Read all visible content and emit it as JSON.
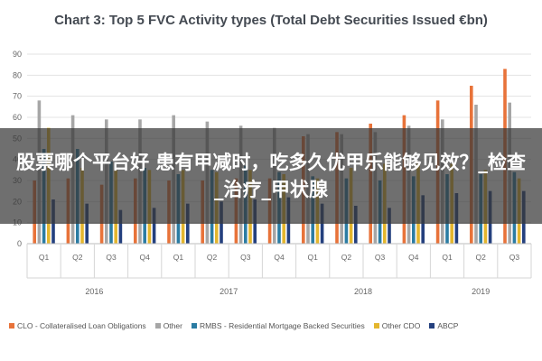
{
  "chart_data": {
    "type": "bar",
    "title": "Chart 3: Top 5 FVC Activity types (Total Debt Securities Issued €bn)",
    "ylim": [
      0,
      90
    ],
    "yticks": [
      0,
      10,
      20,
      30,
      40,
      50,
      60,
      70,
      80,
      90
    ],
    "grid": true,
    "legend_position": "bottom",
    "categories": [
      "Q1",
      "Q2",
      "Q3",
      "Q4",
      "Q1",
      "Q2",
      "Q3",
      "Q4",
      "Q1",
      "Q2",
      "Q3",
      "Q4",
      "Q1",
      "Q2",
      "Q3"
    ],
    "groups": [
      {
        "label": "2016",
        "start": 0,
        "count": 4
      },
      {
        "label": "2017",
        "start": 4,
        "count": 4
      },
      {
        "label": "2018",
        "start": 8,
        "count": 4
      },
      {
        "label": "2019",
        "start": 12,
        "count": 3
      }
    ],
    "series": [
      {
        "name": "CLO - Collateralised Loan Obligations",
        "color": "#e8733a",
        "values": [
          30,
          31,
          28,
          31,
          30,
          30,
          31,
          31,
          51,
          53,
          57,
          61,
          68,
          75,
          83
        ]
      },
      {
        "name": "Other",
        "color": "#a6a6a6",
        "values": [
          68,
          61,
          59,
          59,
          61,
          58,
          56,
          55,
          52,
          52,
          53,
          56,
          59,
          66,
          67
        ]
      },
      {
        "name": "RMBS - Residential Mortgage Backed Securities",
        "color": "#2b7ca3",
        "values": [
          45,
          45,
          39,
          36,
          33,
          35,
          37,
          34,
          32,
          31,
          30,
          32,
          33,
          33,
          34
        ]
      },
      {
        "name": "Other CDO",
        "color": "#e4b62e",
        "values": [
          55,
          36,
          35,
          35,
          35,
          34,
          35,
          33,
          31,
          36,
          38,
          38,
          38,
          35,
          31
        ]
      },
      {
        "name": "ABCP",
        "color": "#24407e",
        "values": [
          21,
          19,
          16,
          17,
          19,
          20,
          21,
          22,
          19,
          18,
          17,
          23,
          24,
          25,
          25
        ]
      }
    ]
  },
  "overlay": {
    "text": "股票哪个平台好 患有甲减时，吃多久优甲乐能够见效？_检查_治疗_甲状腺"
  }
}
